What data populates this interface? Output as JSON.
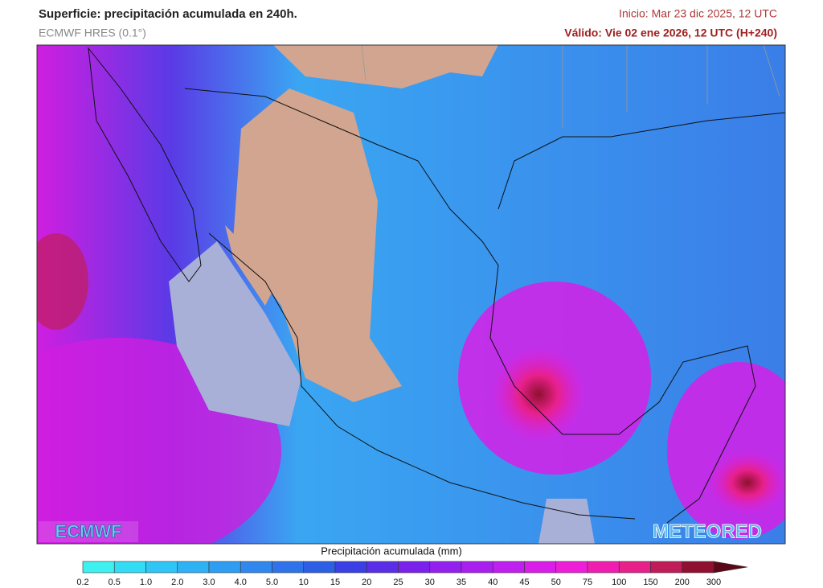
{
  "header": {
    "title": "Superficie: precipitación acumulada en 240h.",
    "model": "ECMWF HRES (0.1°)",
    "init": "Inicio: Mar 23 dic 2025, 12 UTC",
    "valid": "Válido: Vie 02 ene 2026, 12 UTC (H+240)"
  },
  "logos": {
    "left": "ECMWF",
    "right": "METEORED"
  },
  "colorbar": {
    "label": "Precipitación acumulada (mm)",
    "ticks": [
      "0.2",
      "0.5",
      "1.0",
      "2.0",
      "3.0",
      "4.0",
      "5.0",
      "10",
      "15",
      "20",
      "25",
      "30",
      "35",
      "40",
      "45",
      "50",
      "75",
      "100",
      "150",
      "200",
      "300"
    ],
    "colors": [
      "#3ff0f0",
      "#33dcf5",
      "#2fc6f7",
      "#2fb2f5",
      "#2f9df2",
      "#3088ee",
      "#2f73ea",
      "#2d5ee6",
      "#3a3fe6",
      "#5a2ee8",
      "#7a22ec",
      "#9420f0",
      "#a91ff0",
      "#bf1ff0",
      "#d81ee8",
      "#ee1ed8",
      "#f01eb0",
      "#e8208a",
      "#c01c5a",
      "#8f1030",
      "#5a0818"
    ]
  }
}
